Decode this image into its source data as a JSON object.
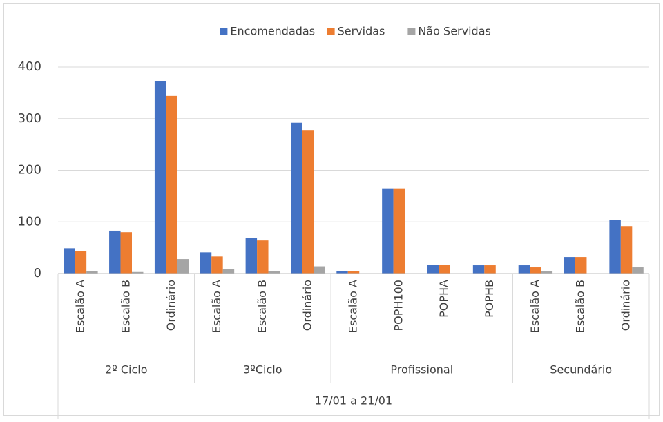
{
  "chart_data": {
    "type": "bar",
    "period": "17/01 a 21/01",
    "groups": [
      {
        "name": "2º Ciclo",
        "categories": [
          "Escalão A",
          "Escalão B",
          "Ordinário"
        ]
      },
      {
        "name": "3ºCiclo",
        "categories": [
          "Escalão A",
          "Escalão B",
          "Ordinário"
        ]
      },
      {
        "name": "Profissional",
        "categories": [
          "Escalão A",
          "POPH100",
          "POPHA",
          "POPHB"
        ]
      },
      {
        "name": "Secundário",
        "categories": [
          "Escalão A",
          "Escalão B",
          "Ordinário"
        ]
      }
    ],
    "series": [
      {
        "name": "Encomendadas",
        "color": "#4472c4",
        "values": [
          49,
          83,
          373,
          41,
          69,
          292,
          5,
          165,
          17,
          16,
          16,
          32,
          104
        ]
      },
      {
        "name": "Servidas",
        "color": "#ed7d31",
        "values": [
          44,
          80,
          344,
          33,
          64,
          278,
          5,
          165,
          17,
          16,
          12,
          32,
          92
        ]
      },
      {
        "name": "Não Servidas",
        "color": "#a5a5a5",
        "values": [
          5,
          3,
          28,
          8,
          5,
          14,
          0,
          0,
          0,
          0,
          4,
          0,
          12
        ]
      }
    ],
    "ylim": [
      0,
      400
    ],
    "yticks": [
      0,
      100,
      200,
      300,
      400
    ],
    "grid": true,
    "legend": "top"
  }
}
